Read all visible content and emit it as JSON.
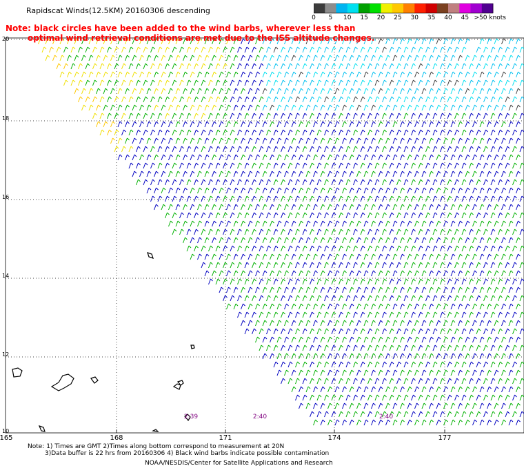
{
  "title": "Rapidscat Winds(12.5KM) 20160306 descending",
  "note": {
    "line1": "Note: black circles have been added to the wind barbs, wherever less than",
    "line2": "optimal wind retrieval conditions are met due to the ISS altitude changes."
  },
  "colorbar": {
    "colors": [
      "#3c3c3c",
      "#8c8c8c",
      "#00b4f0",
      "#00e0f0",
      "#00a000",
      "#00e000",
      "#f0f000",
      "#ffc800",
      "#ff8000",
      "#ff2000",
      "#d00000",
      "#7a4020",
      "#c08080",
      "#e000e0",
      "#a000d0",
      "#500090"
    ],
    "labels": [
      "0",
      "5",
      "10",
      "15",
      "20",
      "25",
      "30",
      "35",
      "40",
      "45",
      ">50 knots"
    ]
  },
  "map": {
    "lat_labels": [
      "20",
      "18",
      "16",
      "14",
      "12",
      "10"
    ],
    "lon_labels": [
      "165",
      "168",
      "171",
      "174",
      "177"
    ],
    "pass_times": [
      "2:39",
      "2:40",
      "2:40"
    ]
  },
  "footer": {
    "line1": "Note: 1) Times are GMT 2)Times along bottom correspond to measurement at 20N",
    "line2": "3)Data buffer is 22 hrs from 20160306 4) Black wind barbs indicate possible contamination",
    "credit": "NOAA/NESDIS/Center for Satellite Applications and Research"
  }
}
